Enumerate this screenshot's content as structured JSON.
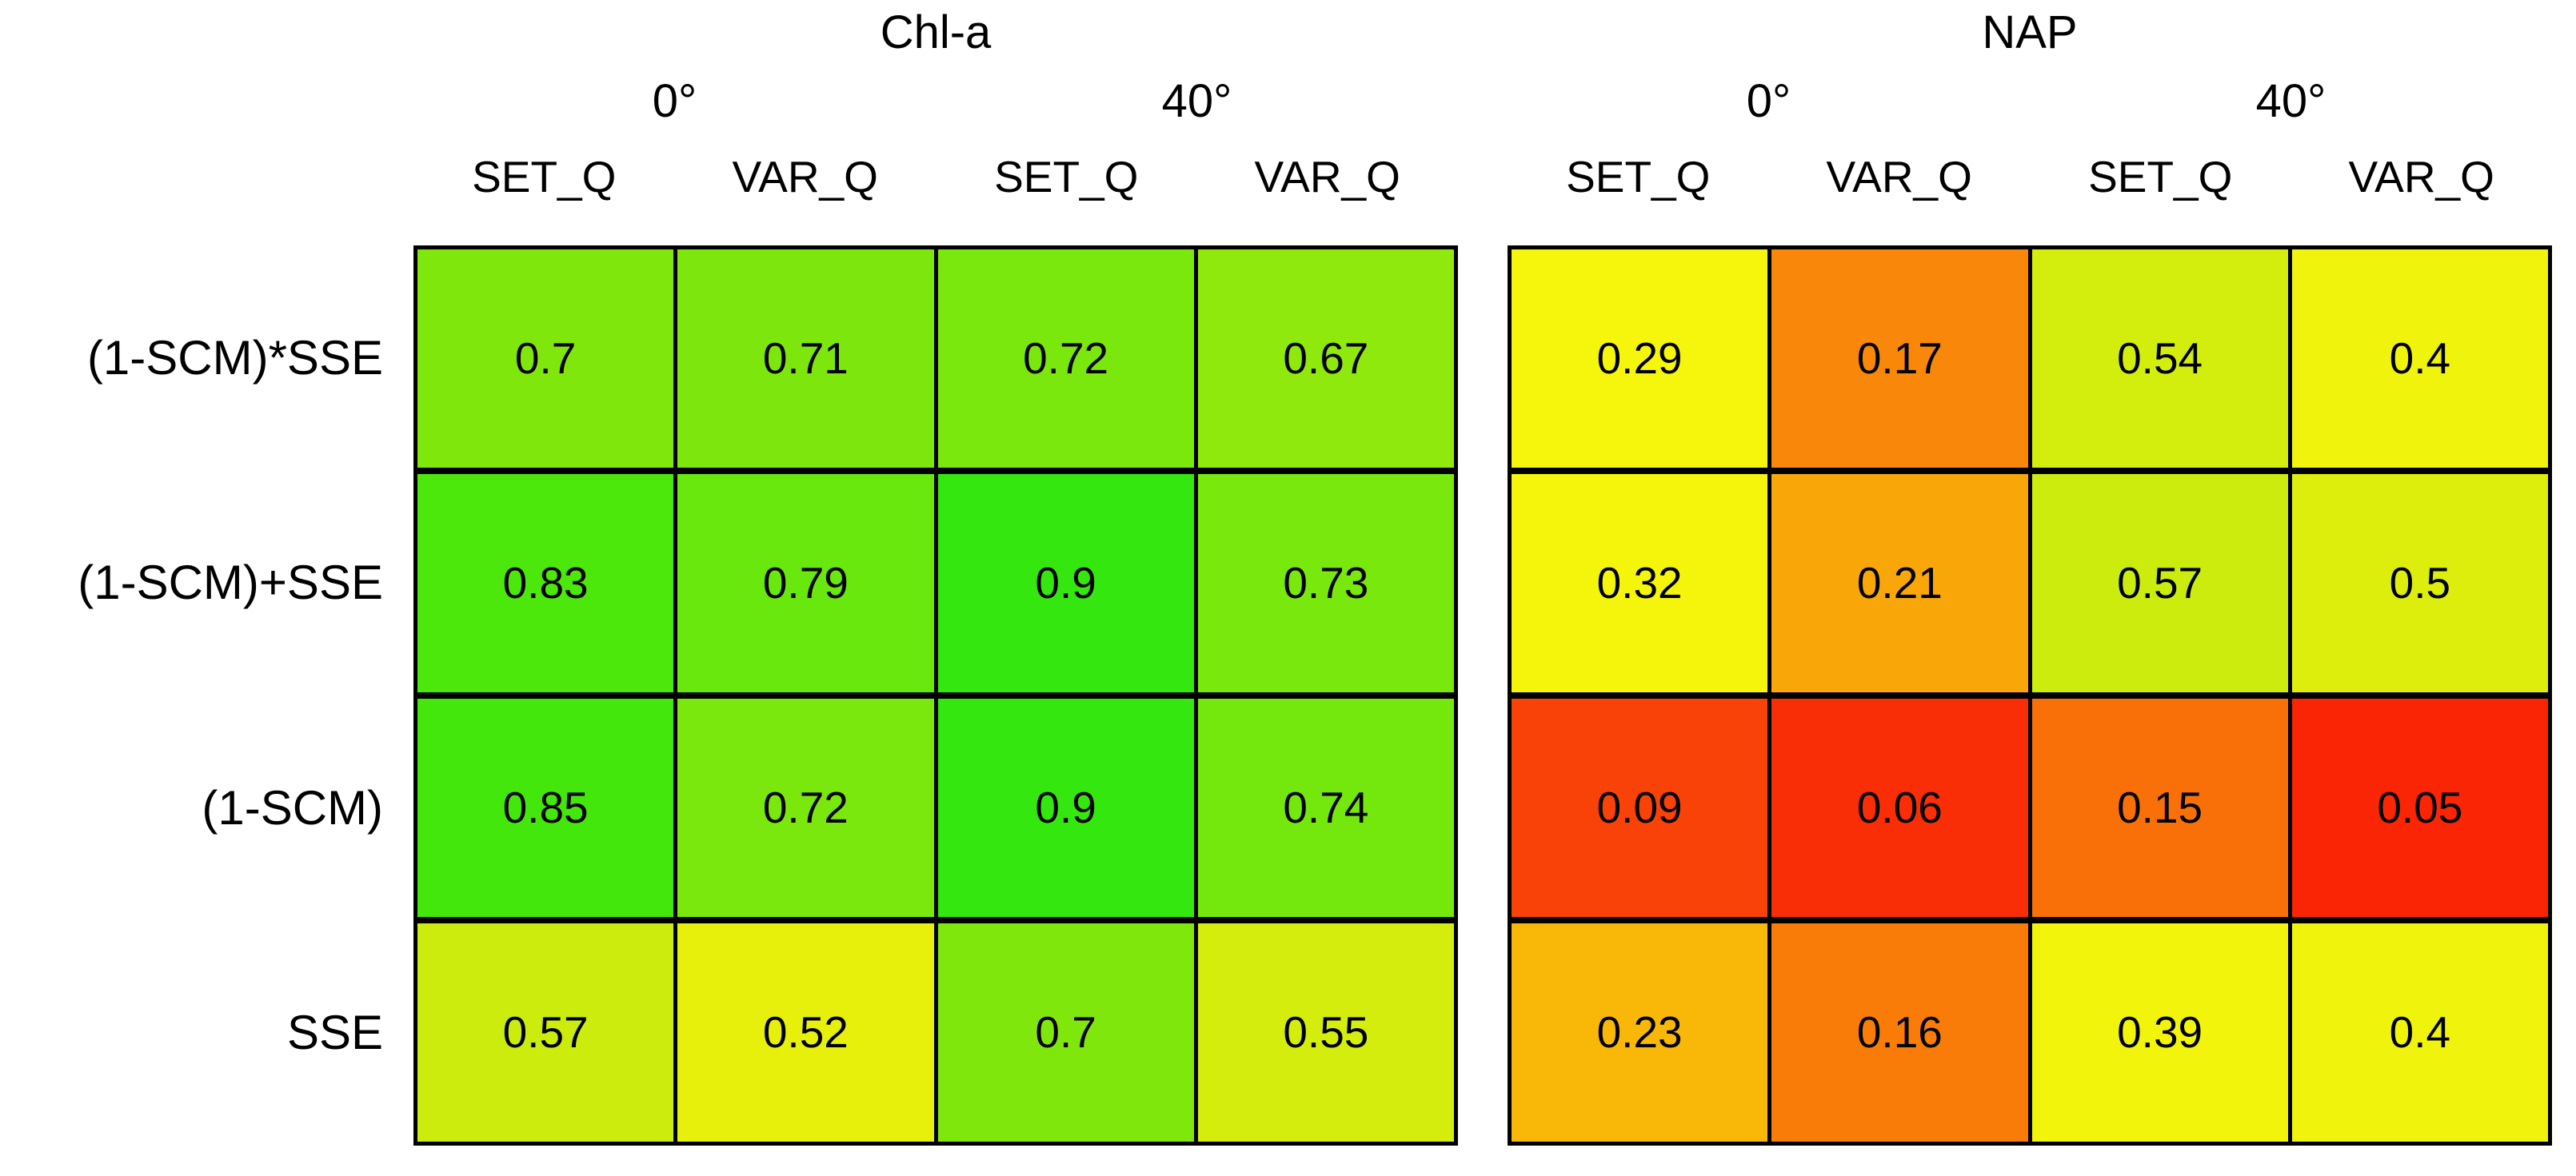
{
  "chart_data": {
    "type": "heatmap",
    "description": "Two side-by-side 4x4 heatmap tables of score values, red (low) to yellow to green (high), black cell borders, no legend",
    "colormap": {
      "low": "#FA2505",
      "mid": "#F5F50C",
      "high": "#33E70F"
    },
    "row_labels": [
      "(1-SCM)*SSE",
      "(1-SCM)+SSE",
      "(1-SCM)",
      "SSE"
    ],
    "panels": [
      {
        "title": "Chl-a",
        "angle_groups": [
          "0°",
          "40°"
        ],
        "col_headers": [
          "SET_Q",
          "VAR_Q",
          "SET_Q",
          "VAR_Q"
        ],
        "values": [
          [
            0.7,
            0.71,
            0.72,
            0.67
          ],
          [
            0.83,
            0.79,
            0.9,
            0.73
          ],
          [
            0.85,
            0.72,
            0.9,
            0.74
          ],
          [
            0.57,
            0.52,
            0.7,
            0.55
          ]
        ],
        "cell_colors": [
          [
            "#80E70D",
            "#7DE70D",
            "#7AE70D",
            "#8FE90D"
          ],
          [
            "#4CE70B",
            "#68E80C",
            "#33E70F",
            "#78E80D"
          ],
          [
            "#44E70B",
            "#7AE70D",
            "#33E70F",
            "#74E80C"
          ],
          [
            "#CBEC0D",
            "#E7F00B",
            "#80E70D",
            "#D5ED0C"
          ]
        ]
      },
      {
        "title": "NAP",
        "angle_groups": [
          "0°",
          "40°"
        ],
        "col_headers": [
          "SET_Q",
          "VAR_Q",
          "SET_Q",
          "VAR_Q"
        ],
        "values": [
          [
            0.29,
            0.17,
            0.54,
            0.4
          ],
          [
            0.32,
            0.21,
            0.57,
            0.5
          ],
          [
            0.09,
            0.06,
            0.15,
            0.05
          ],
          [
            0.23,
            0.16,
            0.39,
            0.4
          ]
        ],
        "cell_colors": [
          [
            "#F6F60C",
            "#F8870A",
            "#D3ED0D",
            "#F0F30B"
          ],
          [
            "#F5F50C",
            "#F9A708",
            "#CBEC0D",
            "#DDEE0C"
          ],
          [
            "#F84208",
            "#F92E06",
            "#F97008",
            "#FA2505"
          ],
          [
            "#F9B807",
            "#F97C08",
            "#F2F40B",
            "#F0F30B"
          ]
        ]
      }
    ],
    "grid_line_color": "#000000",
    "background_color": "#FFFFFF"
  }
}
